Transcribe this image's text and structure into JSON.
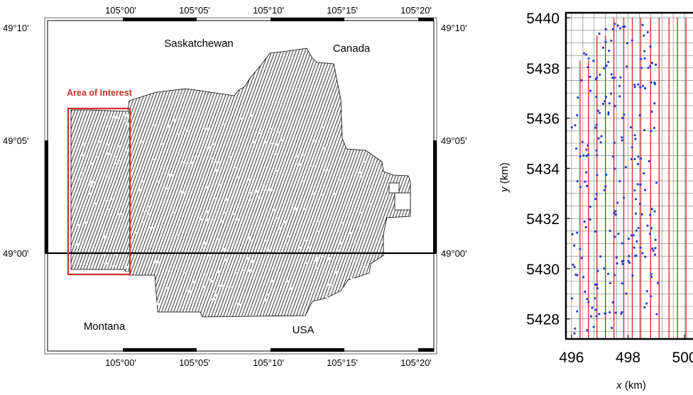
{
  "map": {
    "lon_ticks": [
      "105°00'",
      "105°05'",
      "105°10'",
      "105°15'",
      "105°20'"
    ],
    "lat_ticks": [
      "49°10'",
      "49°05'",
      "49°00'"
    ],
    "labels": {
      "saskatchewan": "Saskatchewan",
      "canada": "Canada",
      "montana": "Montana",
      "usa": "USA",
      "area_of_interest": "Area of Interest"
    },
    "colors": {
      "aoi_box": "#d42a2a",
      "survey": "#000000",
      "border": "#000000"
    }
  },
  "chart_data": {
    "type": "scatter",
    "xlabel_var": "x",
    "xlabel_unit": " (km)",
    "ylabel_var": "y",
    "ylabel_unit": " (km)",
    "x_ticks": [
      "496",
      "498",
      "500"
    ],
    "y_ticks": [
      "5440",
      "5438",
      "5436",
      "5434",
      "5432",
      "5430",
      "5428"
    ],
    "xlim": [
      495.8,
      500.3
    ],
    "ylim": [
      5427.2,
      5440.2
    ],
    "grid": true,
    "series": [
      {
        "marker": "vertical-line",
        "color": "#cc2222"
      },
      {
        "marker": "dot",
        "color": "#2a3ccf"
      }
    ]
  }
}
